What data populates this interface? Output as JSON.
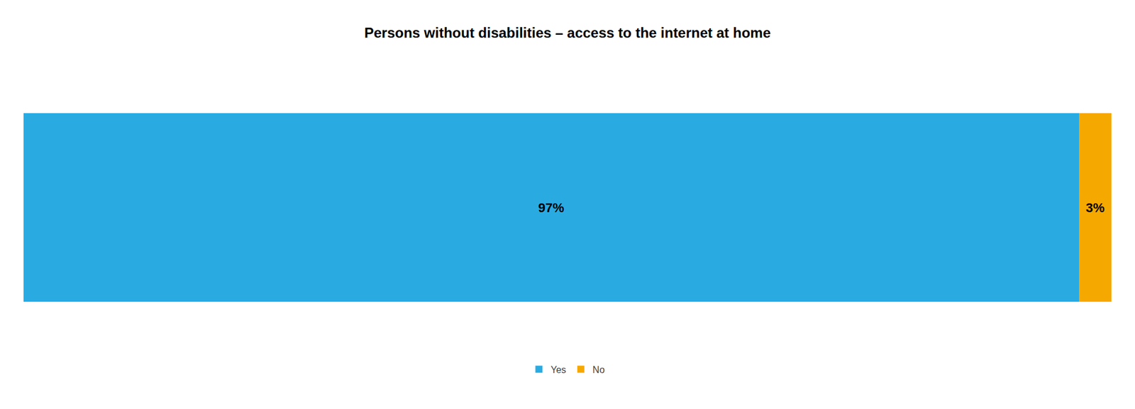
{
  "chart_data": {
    "type": "bar",
    "title": "Persons without disabilities – access to the internet at home",
    "orientation": "horizontal",
    "stacked": true,
    "categories": [
      null
    ],
    "series": [
      {
        "name": "Yes",
        "color": "#29ABE2",
        "values": [
          97
        ],
        "value_labels": [
          "97%"
        ]
      },
      {
        "name": "No",
        "color": "#F5A800",
        "values": [
          3
        ],
        "value_labels": [
          "3%"
        ]
      }
    ],
    "xlim": [
      0,
      100
    ],
    "data_labels": true,
    "tick_labels": false,
    "grid": false,
    "legend": "bottom"
  }
}
